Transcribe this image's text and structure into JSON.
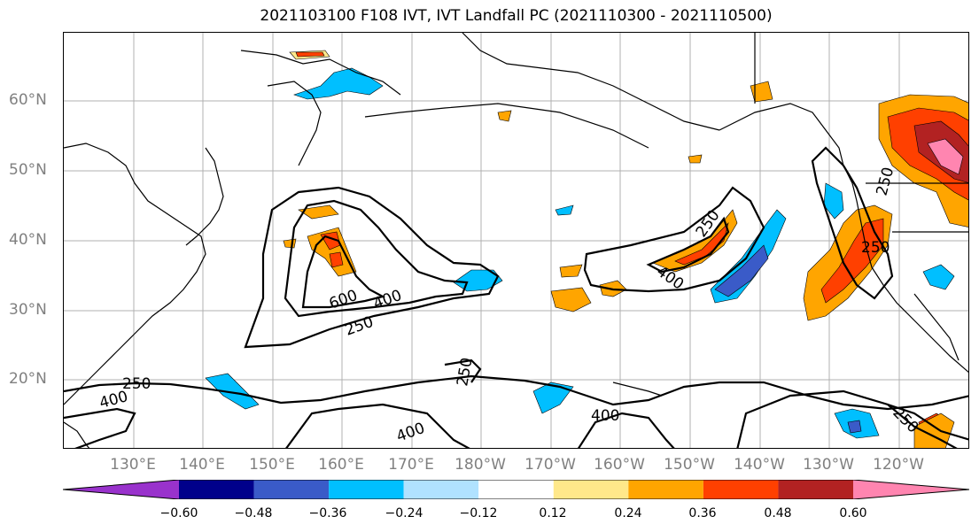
{
  "title": "2021103100 F108 IVT, IVT Landfall PC (2021110300 - 2021110500)",
  "lat_labels": [
    "60°N",
    "50°N",
    "40°N",
    "30°N",
    "20°N"
  ],
  "lon_labels": [
    "130°E",
    "140°E",
    "150°E",
    "160°E",
    "170°E",
    "180°W",
    "170°W",
    "160°W",
    "150°W",
    "140°W",
    "130°W",
    "120°W"
  ],
  "contour_labels": [
    "250",
    "400",
    "600",
    "400",
    "250",
    "250",
    "400",
    "250",
    "400",
    "250",
    "400",
    "250",
    "250"
  ],
  "colorbar": {
    "ticks": [
      "−0.60",
      "−0.48",
      "−0.36",
      "−0.24",
      "−0.12",
      "0.12",
      "0.24",
      "0.36",
      "0.48",
      "0.60"
    ],
    "colors": [
      "#9932cc",
      "#00008b",
      "#3a5bc8",
      "#00bfff",
      "#b0e2ff",
      "#ffffff",
      "#ffe88a",
      "#ffa500",
      "#ff4000",
      "#b22222",
      "#ff85b0"
    ]
  }
}
